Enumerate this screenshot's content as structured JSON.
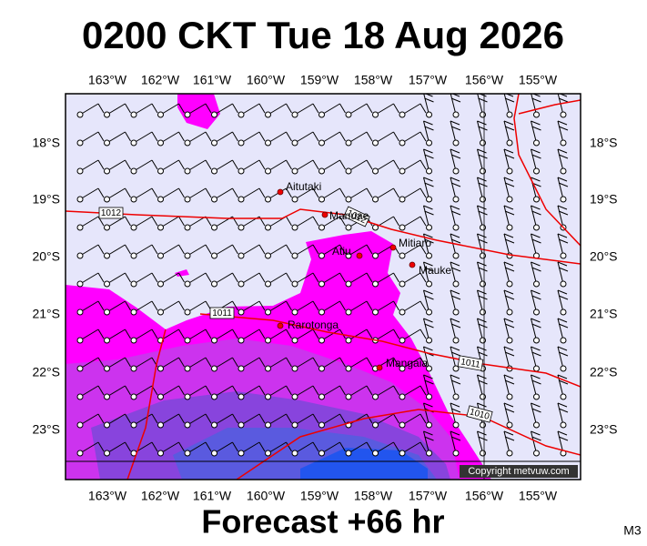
{
  "title": "0200 CKT Tue 18 Aug 2026",
  "footer": "Forecast +66 hr",
  "model": "M3",
  "copyright": "Copyright metvuw.com",
  "longitudes": [
    "163°W",
    "162°W",
    "161°W",
    "160°W",
    "159°W",
    "158°W",
    "157°W",
    "156°W",
    "155°W"
  ],
  "latitudes": [
    "18°S",
    "19°S",
    "20°S",
    "21°S",
    "22°S",
    "23°S"
  ],
  "places": [
    "Aitutaki",
    "Manuae",
    "Atiu",
    "Mitiaro",
    "Mauke",
    "Rarotonga",
    "Mangaia"
  ],
  "isobars": [
    "1012",
    "1012",
    "1011",
    "1011",
    "1010"
  ]
}
